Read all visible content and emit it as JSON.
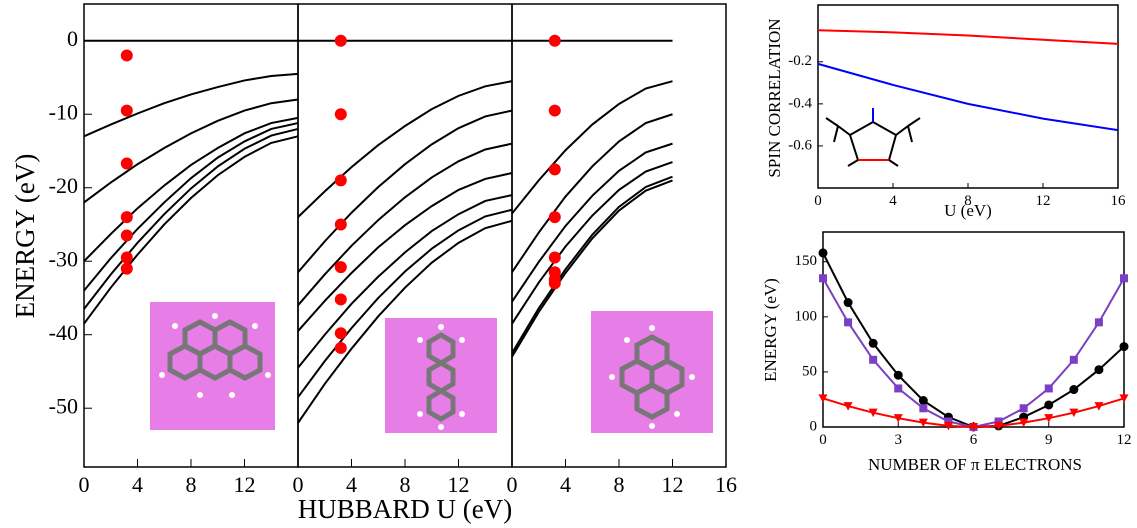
{
  "chart_data": [
    {
      "type": "line",
      "ylabel": "ENERGY (eV)",
      "xlabel": "HUBBARD  U (eV)",
      "ylim": [
        -58,
        5
      ],
      "yticks": [
        0,
        -10,
        -20,
        -30,
        -40,
        -50
      ],
      "panels": [
        {
          "xlim": [
            0,
            16
          ],
          "xticks": [
            0,
            4,
            8,
            12
          ],
          "x": [
            0,
            2,
            4,
            6,
            8,
            10,
            12,
            14,
            16
          ],
          "series": [
            {
              "color": "#000000",
              "values": [
                0,
                0,
                0,
                0,
                0,
                0,
                0,
                0,
                0
              ]
            },
            {
              "color": "#000000",
              "values": [
                -13,
                -11.4,
                -9.9,
                -8.5,
                -7.3,
                -6.3,
                -5.4,
                -4.8,
                -4.5
              ]
            },
            {
              "color": "#000000",
              "values": [
                -22,
                -19.3,
                -16.8,
                -14.6,
                -12.6,
                -10.9,
                -9.5,
                -8.5,
                -8
              ]
            },
            {
              "color": "#000000",
              "values": [
                -30,
                -26.3,
                -22.8,
                -19.7,
                -16.9,
                -14.6,
                -12.6,
                -11.2,
                -10.5
              ]
            },
            {
              "color": "#000000",
              "values": [
                -34,
                -29.6,
                -25.6,
                -22.0,
                -18.7,
                -15.9,
                -13.7,
                -12.0,
                -11.2
              ]
            },
            {
              "color": "#000000",
              "values": [
                -36.5,
                -31.8,
                -27.5,
                -23.6,
                -20.1,
                -17.1,
                -14.7,
                -12.9,
                -12
              ]
            },
            {
              "color": "#000000",
              "values": [
                -38.5,
                -33.6,
                -29.1,
                -25.0,
                -21.4,
                -18.3,
                -15.8,
                -13.9,
                -13
              ]
            }
          ],
          "points": {
            "color": "#ff0000",
            "x": [
              3.2,
              3.2,
              3.2,
              3.2,
              3.2,
              3.2,
              3.2
            ],
            "values": [
              -2,
              -9.5,
              -16.7,
              -24,
              -26.5,
              -29.5,
              -31
            ]
          }
        },
        {
          "xlim": [
            0,
            16
          ],
          "xticks": [
            0,
            4,
            8,
            12
          ],
          "x": [
            0,
            2,
            4,
            6,
            8,
            10,
            12,
            14,
            16
          ],
          "series": [
            {
              "color": "#000000",
              "values": [
                0,
                0,
                0,
                0,
                0,
                0,
                0,
                0,
                0
              ]
            },
            {
              "color": "#000000",
              "values": [
                -24,
                -20.5,
                -17.2,
                -14.2,
                -11.6,
                -9.3,
                -7.5,
                -6.2,
                -5.5
              ]
            },
            {
              "color": "#000000",
              "values": [
                -31.5,
                -27.3,
                -23.4,
                -19.9,
                -16.8,
                -14.1,
                -11.9,
                -10.3,
                -9.5
              ]
            },
            {
              "color": "#000000",
              "values": [
                -36,
                -31.8,
                -27.9,
                -24.4,
                -21.3,
                -18.6,
                -16.4,
                -14.8,
                -14
              ]
            },
            {
              "color": "#000000",
              "values": [
                -39.5,
                -35.4,
                -31.6,
                -28.1,
                -25.1,
                -22.5,
                -20.3,
                -18.8,
                -18
              ]
            },
            {
              "color": "#000000",
              "values": [
                -44.5,
                -40.0,
                -35.8,
                -32.1,
                -28.8,
                -25.9,
                -23.6,
                -21.8,
                -21
              ]
            },
            {
              "color": "#000000",
              "values": [
                -48.5,
                -43.6,
                -39.1,
                -35.0,
                -31.4,
                -28.3,
                -25.8,
                -23.9,
                -23
              ]
            },
            {
              "color": "#000000",
              "values": [
                -52,
                -46.7,
                -41.9,
                -37.5,
                -33.6,
                -30.2,
                -27.5,
                -25.5,
                -24.5
              ]
            }
          ],
          "points": {
            "color": "#ff0000",
            "x": [
              3.2,
              3.2,
              3.2,
              3.2,
              3.2,
              3.2,
              3.2,
              3.2
            ],
            "values": [
              0,
              -10,
              -19,
              -25,
              -30.8,
              -35.2,
              -39.8,
              -41.8
            ]
          }
        },
        {
          "xlim": [
            0,
            16
          ],
          "xticks": [
            0,
            4,
            8,
            12,
            16
          ],
          "x": [
            0,
            2,
            4,
            6,
            8,
            10,
            12
          ],
          "series": [
            {
              "color": "#000000",
              "values": [
                0,
                0,
                0,
                0,
                0,
                0,
                0
              ]
            },
            {
              "color": "#000000",
              "values": [
                -23.5,
                -19.0,
                -14.9,
                -11.4,
                -8.6,
                -6.5,
                -5.5
              ]
            },
            {
              "color": "#000000",
              "values": [
                -31.5,
                -26.1,
                -21.2,
                -17.1,
                -13.7,
                -11.2,
                -10
              ]
            },
            {
              "color": "#000000",
              "values": [
                -35.5,
                -30.1,
                -25.2,
                -21.1,
                -17.7,
                -15.2,
                -14
              ]
            },
            {
              "color": "#000000",
              "values": [
                -38.5,
                -32.9,
                -28.0,
                -23.8,
                -20.3,
                -17.8,
                -16.5
              ]
            },
            {
              "color": "#000000",
              "values": [
                -42.5,
                -36.4,
                -31.1,
                -26.4,
                -22.6,
                -19.9,
                -18.5
              ]
            },
            {
              "color": "#000000",
              "values": [
                -43,
                -36.9,
                -31.6,
                -26.9,
                -23.1,
                -20.4,
                -19
              ]
            }
          ],
          "points": {
            "color": "#ff0000",
            "x": [
              3.2,
              3.2,
              3.2,
              3.2,
              3.2,
              3.2,
              3.2,
              3.2
            ],
            "values": [
              0,
              -9.5,
              -17.5,
              -24,
              -29.5,
              -31.5,
              -32.5,
              -33
            ]
          }
        }
      ]
    },
    {
      "type": "line",
      "ylabel": "SPIN CORRELATION",
      "xlabel": "U (eV)",
      "xlim": [
        0,
        16
      ],
      "xticks": [
        0,
        4,
        8,
        12,
        16
      ],
      "ylim": [
        -0.8,
        0.07
      ],
      "yticks": [
        -0.6,
        -0.4,
        -0.2
      ],
      "x": [
        0,
        4,
        8,
        12,
        16
      ],
      "series": [
        {
          "color": "#ff0000",
          "values": [
            -0.05,
            -0.06,
            -0.075,
            -0.095,
            -0.115
          ]
        },
        {
          "color": "#0000ff",
          "values": [
            -0.21,
            -0.31,
            -0.4,
            -0.47,
            -0.525
          ]
        }
      ]
    },
    {
      "type": "line",
      "ylabel": "ENERGY (eV)",
      "xlabel": "NUMBER OF π  ELECTRONS",
      "xlim": [
        0,
        12
      ],
      "xticks": [
        0,
        3,
        6,
        9,
        12
      ],
      "ylim": [
        0,
        177
      ],
      "yticks": [
        0,
        50,
        100,
        150
      ],
      "x": [
        0,
        1,
        2,
        3,
        4,
        5,
        6,
        7,
        8,
        9,
        10,
        11,
        12
      ],
      "series": [
        {
          "color": "#000000",
          "marker": "circle",
          "values": [
            158,
            113,
            76,
            47,
            24,
            9,
            0,
            1,
            9,
            20,
            34,
            52,
            73
          ]
        },
        {
          "color": "#7b3fc4",
          "marker": "square",
          "values": [
            135,
            95,
            61,
            35,
            17,
            5,
            0,
            5,
            17,
            35,
            61,
            95,
            135
          ]
        },
        {
          "color": "#ff0000",
          "marker": "triangle",
          "values": [
            26,
            19,
            13,
            8,
            4,
            1,
            0,
            1,
            4,
            8,
            13,
            19,
            26
          ]
        }
      ]
    }
  ]
}
